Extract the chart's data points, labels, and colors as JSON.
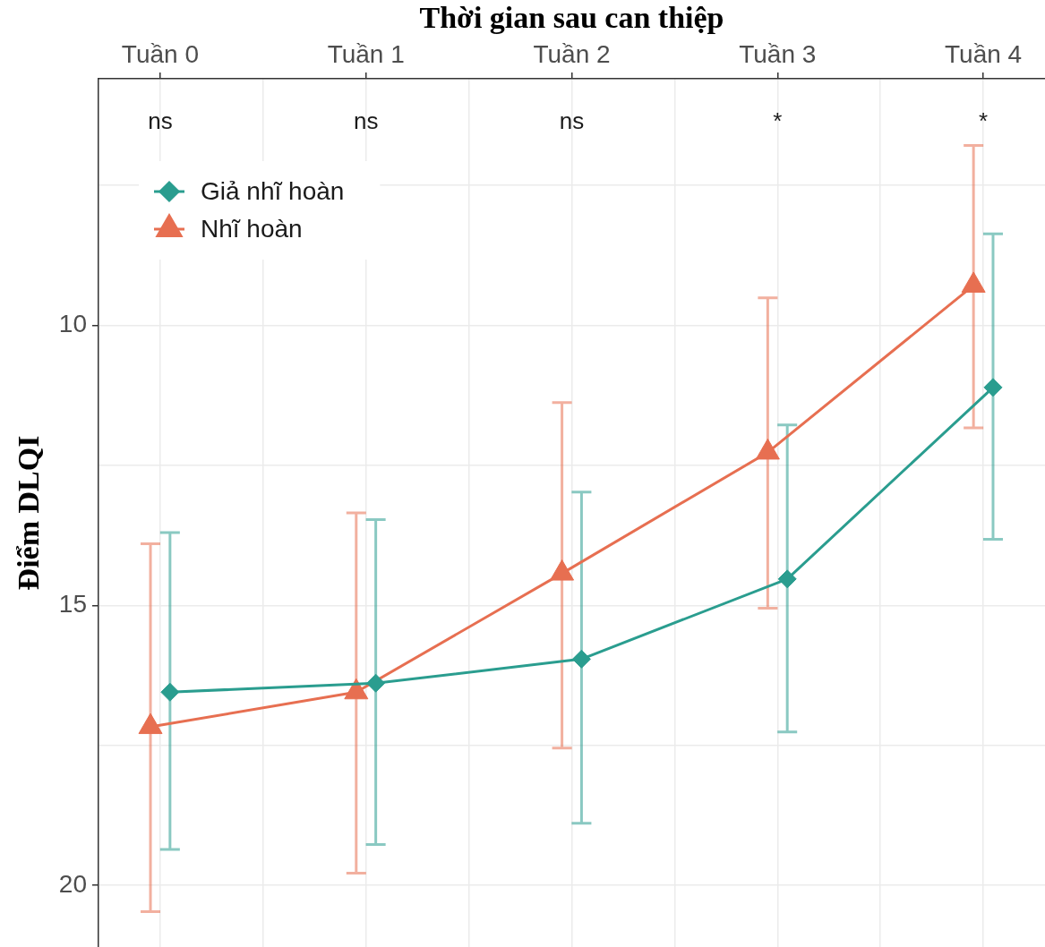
{
  "chart_data": {
    "type": "line",
    "xlabel": "Thời gian sau can thiệp",
    "ylabel": "Điểm DLQI",
    "categories": [
      "Tuần 0",
      "Tuần 1",
      "Tuần 2",
      "Tuần 3",
      "Tuần 4"
    ],
    "series": [
      {
        "name": "Giả nhĩ hoàn",
        "color": "#2a9d8f",
        "marker": "diamond",
        "values": [
          16.55,
          16.39,
          15.96,
          14.53,
          11.11
        ],
        "errors": [
          [
            13.7,
            19.36
          ],
          [
            13.47,
            19.27
          ],
          [
            12.98,
            18.89
          ],
          [
            11.78,
            17.26
          ],
          [
            8.37,
            13.82
          ]
        ]
      },
      {
        "name": "Nhĩ hoàn",
        "color": "#e76f51",
        "marker": "triangle",
        "values": [
          17.17,
          16.55,
          14.43,
          12.27,
          9.29
        ],
        "errors": [
          [
            13.9,
            20.47
          ],
          [
            13.35,
            19.78
          ],
          [
            11.38,
            17.55
          ],
          [
            9.51,
            15.05
          ],
          [
            6.79,
            11.83
          ]
        ]
      }
    ],
    "ylim": [
      21.1,
      5.6
    ],
    "yticks": [
      {
        "value": 7.5,
        "label": null
      },
      10,
      {
        "value": 12.5,
        "label": null
      },
      15,
      {
        "value": 17.5,
        "label": null
      },
      20
    ],
    "grid": true,
    "legend": "top left",
    "annotations": [
      "ns",
      "ns",
      "ns",
      "*",
      "*"
    ]
  }
}
